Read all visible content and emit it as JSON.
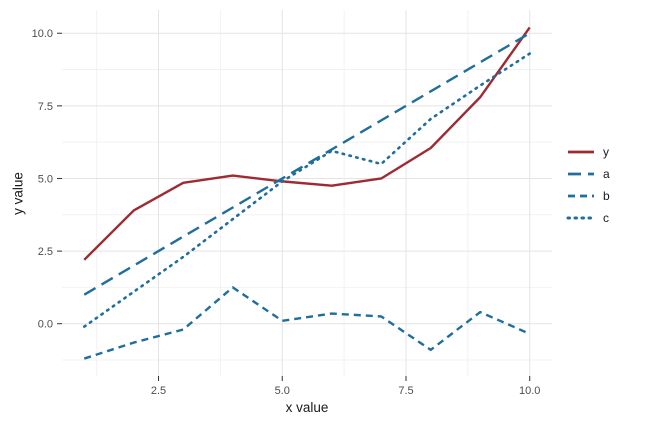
{
  "figure": {
    "xlabel": "x value",
    "ylabel": "y value"
  },
  "chart_data": {
    "type": "line",
    "title": "",
    "xlabel": "x value",
    "ylabel": "y value",
    "x": [
      1,
      2,
      3,
      4,
      5,
      6,
      7,
      8,
      9,
      10
    ],
    "series": [
      {
        "name": "y",
        "color": "#9e2b33",
        "dash": "",
        "width": 2.4,
        "values": [
          2.2,
          3.9,
          4.85,
          5.1,
          4.9,
          4.75,
          5.0,
          6.05,
          7.8,
          10.2
        ]
      },
      {
        "name": "a",
        "color": "#1f6e9c",
        "dash": "13 7",
        "width": 2.4,
        "values": [
          1,
          2,
          3,
          4,
          5,
          6,
          7,
          8,
          9,
          10
        ]
      },
      {
        "name": "b",
        "color": "#1f6e9c",
        "dash": "7 5",
        "width": 2.4,
        "values": [
          -1.2,
          -0.65,
          -0.2,
          1.25,
          0.1,
          0.35,
          0.25,
          -0.9,
          0.4,
          -0.35
        ]
      },
      {
        "name": "c",
        "color": "#1f6e9c",
        "dash": "1.5 5.5",
        "width": 2.6,
        "cap": "round",
        "values": [
          -0.1,
          1.1,
          2.3,
          3.6,
          4.9,
          5.95,
          5.5,
          7.05,
          8.2,
          9.3
        ]
      }
    ],
    "xlim": [
      0.55,
      10.45
    ],
    "ylim": [
      -1.8,
      10.8
    ],
    "xticks": {
      "values": [
        2.5,
        5,
        7.5,
        10
      ],
      "labels": [
        "2.5",
        "5.0",
        "7.5",
        "10.0"
      ]
    },
    "yticks": {
      "values": [
        0,
        2.5,
        5,
        7.5,
        10
      ],
      "labels": [
        "0.0",
        "2.5",
        "5.0",
        "7.5",
        "10.0"
      ]
    },
    "grid": {
      "major": "#e4e4e4",
      "minor": "#f2f2f2",
      "x_minor": [
        1.25,
        3.75,
        6.25,
        8.75
      ],
      "y_minor": [
        -1.25,
        1.25,
        3.75,
        6.25,
        8.75
      ]
    },
    "legend": {
      "position": "right",
      "entries": [
        "y",
        "a",
        "b",
        "c"
      ]
    }
  }
}
